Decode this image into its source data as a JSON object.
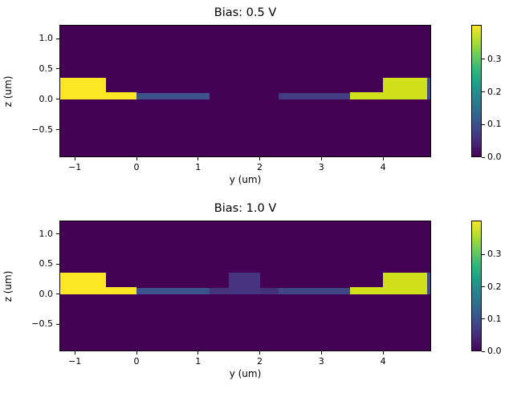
{
  "figure": {
    "background": "#ffffff",
    "colormap": "viridis",
    "viridis_stops": [
      "#440154",
      "#482878",
      "#3e4a89",
      "#31688e",
      "#26828e",
      "#1f9e89",
      "#35b779",
      "#6ece58",
      "#b5de2b",
      "#fde725"
    ]
  },
  "chart_data": [
    {
      "type": "heatmap",
      "title": "Bias: 0.5 V",
      "xlabel": "y (um)",
      "ylabel": "z (um)",
      "xlim": [
        -1.25,
        4.78
      ],
      "ylim": [
        -0.955,
        1.225
      ],
      "xticks": {
        "values": [
          -1,
          0,
          1,
          2,
          3,
          4
        ],
        "labels": [
          "−1",
          "0",
          "1",
          "2",
          "3",
          "4"
        ]
      },
      "yticks": {
        "values": [
          1.0,
          0.5,
          0.0,
          -0.5
        ],
        "labels": [
          "1.0",
          "0.5",
          "0.0",
          "−0.5"
        ]
      },
      "background_value": 0.0,
      "background_color": "#440154",
      "colorbar": {
        "vmin": 0.0,
        "vmax": 0.405,
        "ticks": [
          0.0,
          0.1,
          0.2,
          0.3
        ],
        "tick_labels": [
          "0.0",
          "0.1",
          "0.2",
          "0.3"
        ]
      },
      "regions": [
        {
          "name": "left-contact-pad",
          "x": [
            -1.25,
            -0.5
          ],
          "z": [
            0.0,
            0.35
          ],
          "value": 0.4,
          "color": "#fde725"
        },
        {
          "name": "left-contact-ledge",
          "x": [
            -0.5,
            0.0
          ],
          "z": [
            0.0,
            0.12
          ],
          "value": 0.4,
          "color": "#fce724"
        },
        {
          "name": "left-channel-strip",
          "x": [
            0.0,
            1.19
          ],
          "z": [
            0.0,
            0.1
          ],
          "value": 0.14,
          "color": "#3b528b"
        },
        {
          "name": "right-channel-strip",
          "x": [
            2.3,
            3.47
          ],
          "z": [
            0.0,
            0.1
          ],
          "value": 0.11,
          "color": "#433c83"
        },
        {
          "name": "right-contact-ledge",
          "x": [
            3.47,
            4.0
          ],
          "z": [
            0.0,
            0.12
          ],
          "value": 0.355,
          "color": "#d0e11c"
        },
        {
          "name": "right-contact-pad",
          "x": [
            4.0,
            4.72
          ],
          "z": [
            0.0,
            0.35
          ],
          "value": 0.355,
          "color": "#d0e11c"
        },
        {
          "name": "right-edge-column",
          "x": [
            4.72,
            4.78
          ],
          "z": [
            0.0,
            0.35
          ],
          "value": 0.13,
          "color": "#3d4e8a"
        }
      ]
    },
    {
      "type": "heatmap",
      "title": "Bias: 1.0 V",
      "xlabel": "y (um)",
      "ylabel": "z (um)",
      "xlim": [
        -1.25,
        4.78
      ],
      "ylim": [
        -0.955,
        1.225
      ],
      "xticks": {
        "values": [
          -1,
          0,
          1,
          2,
          3,
          4
        ],
        "labels": [
          "−1",
          "0",
          "1",
          "2",
          "3",
          "4"
        ]
      },
      "yticks": {
        "values": [
          1.0,
          0.5,
          0.0,
          -0.5
        ],
        "labels": [
          "1.0",
          "0.5",
          "0.0",
          "−0.5"
        ]
      },
      "background_value": 0.0,
      "background_color": "#440154",
      "colorbar": {
        "vmin": 0.0,
        "vmax": 0.405,
        "ticks": [
          0.0,
          0.1,
          0.2,
          0.3
        ],
        "tick_labels": [
          "0.0",
          "0.1",
          "0.2",
          "0.3"
        ]
      },
      "regions": [
        {
          "name": "left-contact-pad",
          "x": [
            -1.25,
            -0.5
          ],
          "z": [
            0.0,
            0.35
          ],
          "value": 0.4,
          "color": "#fde725"
        },
        {
          "name": "left-contact-ledge",
          "x": [
            -0.5,
            0.0
          ],
          "z": [
            0.0,
            0.12
          ],
          "value": 0.4,
          "color": "#fce724"
        },
        {
          "name": "left-channel-strip",
          "x": [
            0.0,
            1.19
          ],
          "z": [
            0.0,
            0.1
          ],
          "value": 0.14,
          "color": "#3b528b"
        },
        {
          "name": "gate-strip-left",
          "x": [
            1.19,
            1.5
          ],
          "z": [
            0.0,
            0.1
          ],
          "value": 0.08,
          "color": "#44337d"
        },
        {
          "name": "gate-block",
          "x": [
            1.5,
            2.0
          ],
          "z": [
            0.0,
            0.35
          ],
          "value": 0.08,
          "color": "#473480"
        },
        {
          "name": "gate-strip-right",
          "x": [
            2.0,
            2.3
          ],
          "z": [
            0.0,
            0.1
          ],
          "value": 0.07,
          "color": "#42307b"
        },
        {
          "name": "right-channel-strip",
          "x": [
            2.3,
            3.47
          ],
          "z": [
            0.0,
            0.1
          ],
          "value": 0.125,
          "color": "#3f4788"
        },
        {
          "name": "right-contact-ledge",
          "x": [
            3.47,
            4.0
          ],
          "z": [
            0.0,
            0.12
          ],
          "value": 0.355,
          "color": "#d0e11c"
        },
        {
          "name": "right-contact-pad",
          "x": [
            4.0,
            4.72
          ],
          "z": [
            0.0,
            0.35
          ],
          "value": 0.355,
          "color": "#d0e11c"
        },
        {
          "name": "right-edge-column",
          "x": [
            4.72,
            4.78
          ],
          "z": [
            0.0,
            0.35
          ],
          "value": 0.13,
          "color": "#3d4e8a"
        }
      ]
    }
  ]
}
